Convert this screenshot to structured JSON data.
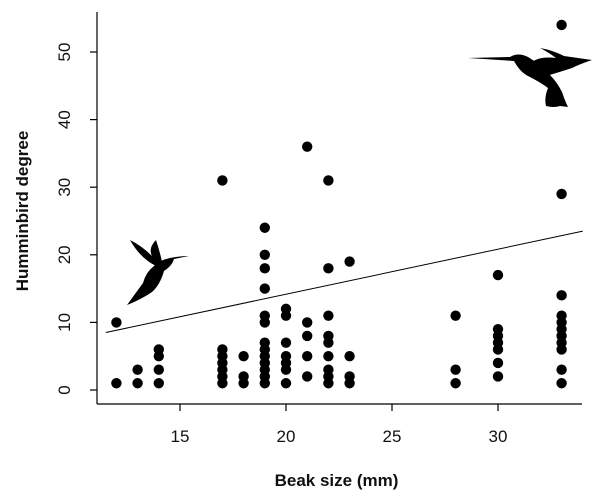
{
  "chart_data": {
    "type": "scatter",
    "title": "",
    "xlabel": "Beak size (mm)",
    "ylabel": "Humminbird degree",
    "xlim": [
      11.5,
      34
    ],
    "ylim": [
      0,
      55
    ],
    "x_ticks": [
      15,
      20,
      25,
      30
    ],
    "y_ticks": [
      0,
      10,
      20,
      30,
      40,
      50
    ],
    "grid": false,
    "legend": "none",
    "point_color": "#000000",
    "trendline": {
      "x": [
        11.5,
        34
      ],
      "y": [
        8.5,
        23.5
      ]
    },
    "series": [
      {
        "points": [
          [
            12,
            10
          ],
          [
            12,
            1
          ],
          [
            13,
            3
          ],
          [
            13,
            1
          ],
          [
            14,
            6
          ],
          [
            14,
            5
          ],
          [
            14,
            3
          ],
          [
            14,
            1
          ],
          [
            17,
            31
          ],
          [
            17,
            6
          ],
          [
            17,
            5
          ],
          [
            17,
            4
          ],
          [
            17,
            3
          ],
          [
            17,
            2
          ],
          [
            17,
            1
          ],
          [
            18,
            5
          ],
          [
            18,
            2
          ],
          [
            18,
            1
          ],
          [
            19,
            24
          ],
          [
            19,
            20
          ],
          [
            19,
            18
          ],
          [
            19,
            15
          ],
          [
            19,
            11
          ],
          [
            19,
            10
          ],
          [
            19,
            7
          ],
          [
            19,
            6
          ],
          [
            19,
            5
          ],
          [
            19,
            4
          ],
          [
            19,
            3
          ],
          [
            19,
            2
          ],
          [
            19,
            1
          ],
          [
            20,
            12
          ],
          [
            20,
            11
          ],
          [
            20,
            7
          ],
          [
            20,
            5
          ],
          [
            20,
            4
          ],
          [
            20,
            3
          ],
          [
            20,
            1
          ],
          [
            21,
            36
          ],
          [
            21,
            10
          ],
          [
            21,
            8
          ],
          [
            21,
            5
          ],
          [
            21,
            2
          ],
          [
            22,
            31
          ],
          [
            22,
            18
          ],
          [
            22,
            11
          ],
          [
            22,
            8
          ],
          [
            22,
            7
          ],
          [
            22,
            5
          ],
          [
            22,
            3
          ],
          [
            22,
            2
          ],
          [
            22,
            1
          ],
          [
            23,
            19
          ],
          [
            23,
            5
          ],
          [
            23,
            2
          ],
          [
            23,
            1
          ],
          [
            28,
            11
          ],
          [
            28,
            3
          ],
          [
            28,
            1
          ],
          [
            30,
            17
          ],
          [
            30,
            9
          ],
          [
            30,
            8
          ],
          [
            30,
            7
          ],
          [
            30,
            6
          ],
          [
            30,
            4
          ],
          [
            30,
            2
          ],
          [
            33,
            54
          ],
          [
            33,
            29
          ],
          [
            33,
            14
          ],
          [
            33,
            11
          ],
          [
            33,
            10
          ],
          [
            33,
            9
          ],
          [
            33,
            8
          ],
          [
            33,
            7
          ],
          [
            33,
            6
          ],
          [
            33,
            3
          ],
          [
            33,
            1
          ]
        ]
      }
    ]
  },
  "icons": {
    "left": "hummingbird-silhouette-icon",
    "right": "hummingbird-silhouette-icon"
  }
}
